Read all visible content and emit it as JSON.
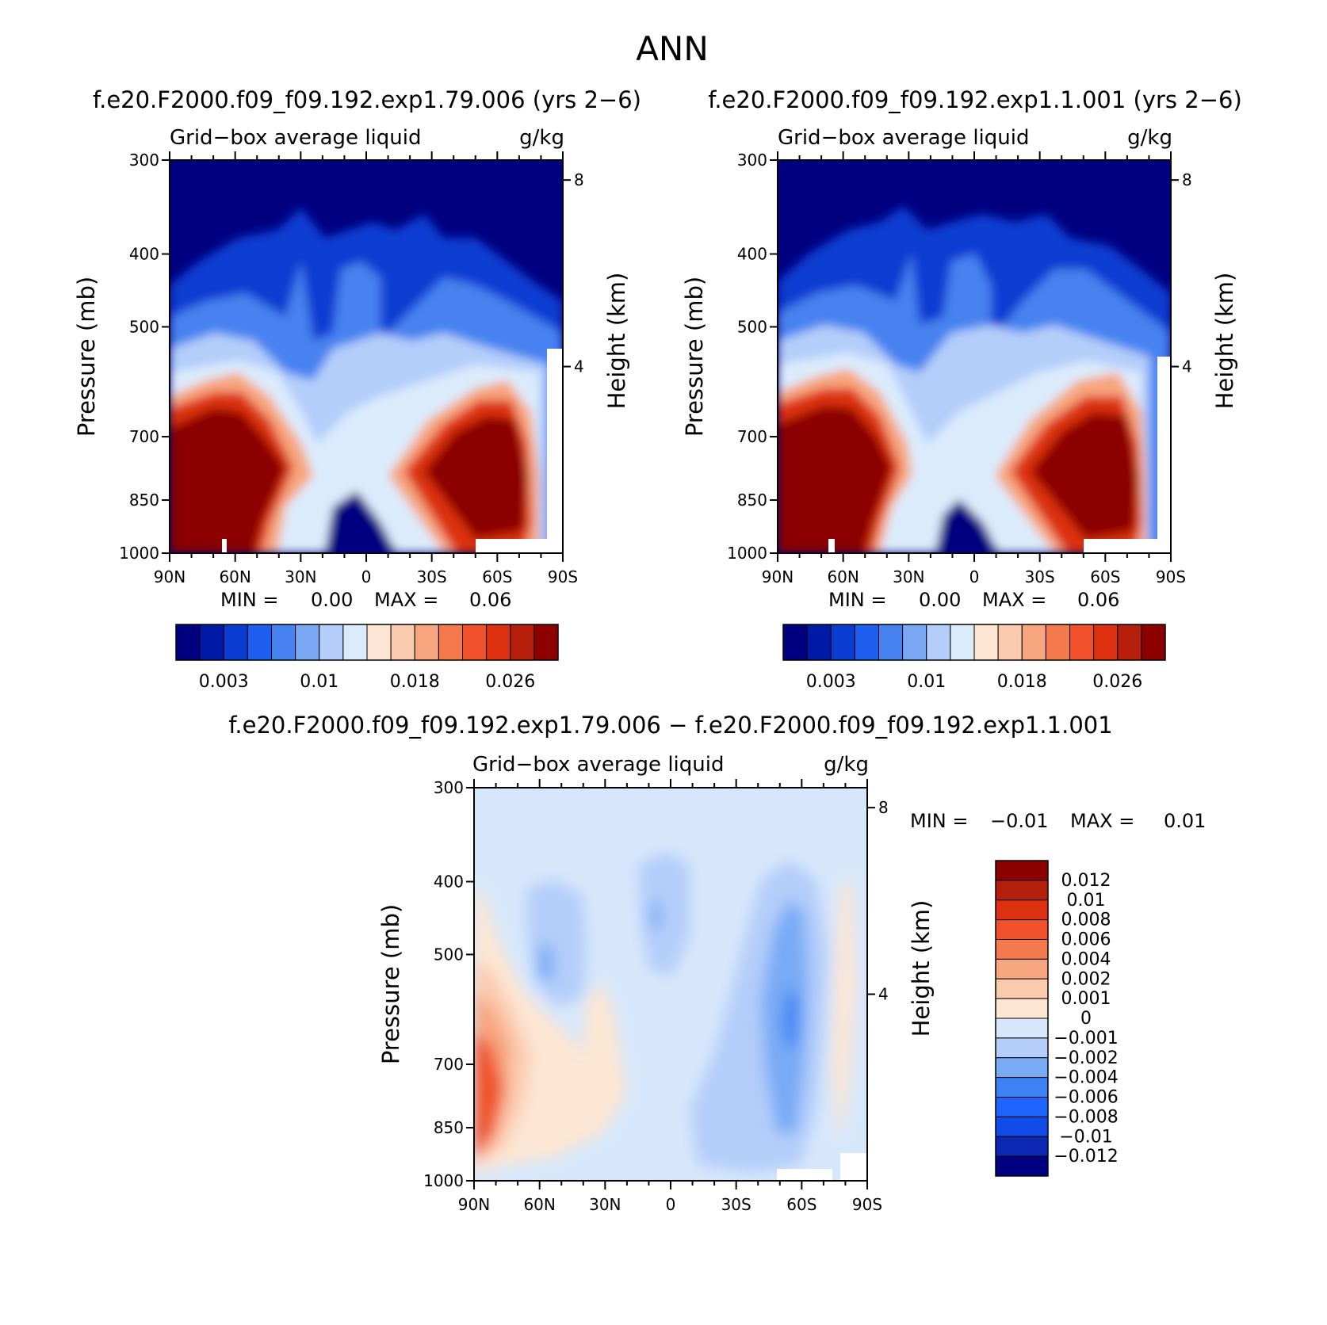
{
  "figure_title": "ANN",
  "colors": {
    "seq": [
      "#000080",
      "#001aa8",
      "#0a3cd2",
      "#1e5ff0",
      "#4682f0",
      "#7aa8f5",
      "#b4cdfa",
      "#dcebfc",
      "#fde6d3",
      "#fbcbb0",
      "#f7a57e",
      "#f47a4e",
      "#f0512c",
      "#dc3010",
      "#b41e0a",
      "#8c0000"
    ],
    "div": [
      "#000080",
      "#0a28b4",
      "#0f4be6",
      "#1e64ff",
      "#3c82f5",
      "#78aaf5",
      "#b4cdfa",
      "#d7e7fb",
      "#fde6d3",
      "#fbcbb0",
      "#f7a57e",
      "#f47a4e",
      "#f0512c",
      "#dc3010",
      "#b41e0a",
      "#8c0000"
    ]
  },
  "chart_data": [
    {
      "type": "heatmap",
      "title": "f.e20.F2000.f09_f09.192.exp1.79.006 (yrs 2−6)",
      "left_label": "Grid−box average liquid",
      "right_label": "g/kg",
      "ylabel": "Pressure (mb)",
      "ylabel2": "Height (km)",
      "yticks": [
        "300",
        "400",
        "500",
        "700",
        "850",
        "1000"
      ],
      "ylim": [
        1000,
        300
      ],
      "yticks2": [
        "8",
        "4"
      ],
      "xticks": [
        "90N",
        "60N",
        "30N",
        "0",
        "30S",
        "60S",
        "90S"
      ],
      "xlim": [
        90,
        -90
      ],
      "min_label": "MIN =",
      "min_value": "0.00",
      "max_label": "MAX =",
      "max_value": "0.06",
      "colorbar_labels": [
        "0.003",
        "0.01",
        "0.018",
        "0.026"
      ]
    },
    {
      "type": "heatmap",
      "title": "f.e20.F2000.f09_f09.192.exp1.1.001 (yrs 2−6)",
      "left_label": "Grid−box average liquid",
      "right_label": "g/kg",
      "ylabel": "Pressure (mb)",
      "ylabel2": "Height (km)",
      "yticks": [
        "300",
        "400",
        "500",
        "700",
        "850",
        "1000"
      ],
      "ylim": [
        1000,
        300
      ],
      "yticks2": [
        "8",
        "4"
      ],
      "xticks": [
        "90N",
        "60N",
        "30N",
        "0",
        "30S",
        "60S",
        "90S"
      ],
      "xlim": [
        90,
        -90
      ],
      "min_label": "MIN =",
      "min_value": "0.00",
      "max_label": "MAX =",
      "max_value": "0.06",
      "colorbar_labels": [
        "0.003",
        "0.01",
        "0.018",
        "0.026"
      ]
    },
    {
      "type": "heatmap",
      "title": "f.e20.F2000.f09_f09.192.exp1.79.006 − f.e20.F2000.f09_f09.192.exp1.1.001",
      "left_label": "Grid−box average liquid",
      "right_label": "g/kg",
      "ylabel": "Pressure (mb)",
      "ylabel2": "Height (km)",
      "yticks": [
        "300",
        "400",
        "500",
        "700",
        "850",
        "1000"
      ],
      "ylim": [
        1000,
        300
      ],
      "yticks2": [
        "8",
        "4"
      ],
      "xticks": [
        "90N",
        "60N",
        "30N",
        "0",
        "30S",
        "60S",
        "90S"
      ],
      "xlim": [
        90,
        -90
      ],
      "min_label": "MIN =",
      "min_value": "−0.01",
      "max_label": "MAX =",
      "max_value": "0.01",
      "colorbar_labels": [
        "0.012",
        "0.01",
        "0.008",
        "0.006",
        "0.004",
        "0.002",
        "0.001",
        "0",
        "−0.001",
        "−0.002",
        "−0.004",
        "−0.006",
        "−0.008",
        "−0.01",
        "−0.012"
      ]
    }
  ]
}
